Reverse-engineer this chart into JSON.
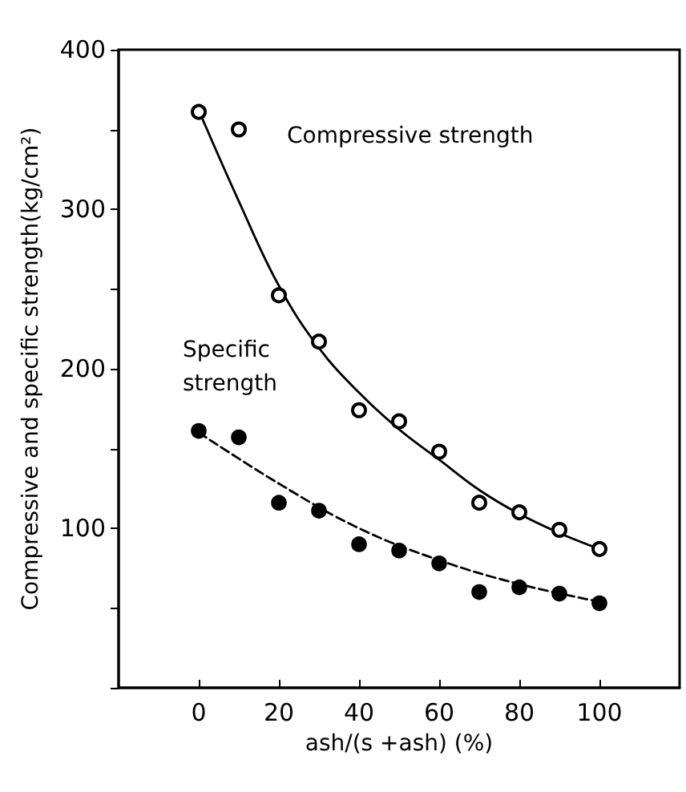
{
  "chart_data": {
    "type": "scatter",
    "xlabel": "ash/(s +ash) (%)",
    "ylabel": "Compressive and specific strength(kg/cm²)",
    "xlim": [
      -20,
      120
    ],
    "xticks": [
      0,
      20,
      40,
      60,
      80,
      100
    ],
    "ylim": [
      0,
      400
    ],
    "yticks": [
      {
        "value": 0,
        "label": null
      },
      {
        "value": 50,
        "label": null
      },
      100,
      {
        "value": 150,
        "label": null
      },
      200,
      {
        "value": 250,
        "label": null
      },
      300,
      {
        "value": 350,
        "label": null
      },
      400
    ],
    "grid": false,
    "legend": false,
    "series": [
      {
        "name": "Compressive strength",
        "marker": "open circle",
        "color": "#000000",
        "x": [
          0,
          10,
          20,
          30,
          40,
          50,
          60,
          70,
          80,
          90,
          100
        ],
        "values": [
          361,
          350,
          246,
          217,
          174,
          167,
          148,
          116,
          110,
          99,
          87
        ]
      },
      {
        "type": "line",
        "line_style": "solid",
        "color": "#000000",
        "x": [
          0,
          10,
          20,
          30,
          40,
          50,
          60,
          70,
          80,
          90,
          100
        ],
        "values": [
          362,
          305,
          252,
          213,
          185,
          162,
          143,
          124,
          109,
          97,
          87
        ]
      },
      {
        "name": "Specific strength",
        "marker": "circle",
        "color": "#000000",
        "x": [
          0,
          10,
          20,
          30,
          40,
          50,
          60,
          70,
          80,
          90,
          100
        ],
        "values": [
          161,
          157,
          116,
          111,
          90,
          86,
          78,
          60,
          63,
          59,
          53
        ]
      },
      {
        "type": "line",
        "line_style": "dashed",
        "color": "#000000",
        "x": [
          0,
          20,
          40,
          60,
          80,
          100
        ],
        "values": [
          160,
          128,
          100,
          80,
          65,
          54
        ]
      }
    ]
  }
}
